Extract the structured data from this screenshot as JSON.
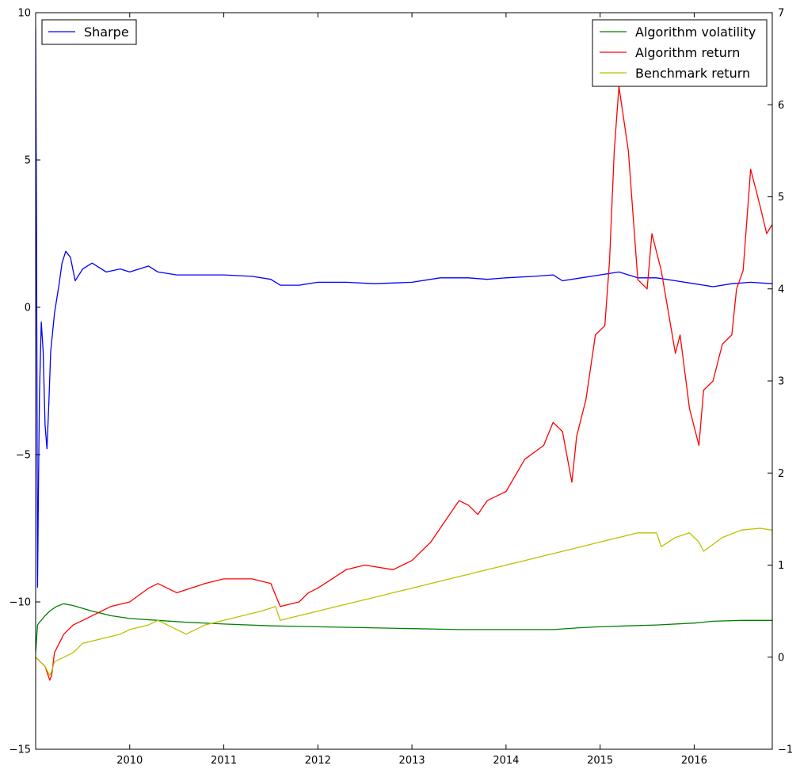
{
  "chart_data": {
    "type": "line",
    "x_range": [
      2009.0,
      2016.83
    ],
    "x_ticks": [
      "2010",
      "2011",
      "2012",
      "2013",
      "2014",
      "2015",
      "2016"
    ],
    "y_left": {
      "range": [
        -15,
        10
      ],
      "ticks": [
        "10",
        "5",
        "0",
        "−5",
        "−10",
        "−15"
      ]
    },
    "y_right": {
      "range": [
        -1,
        7
      ],
      "ticks": [
        "7",
        "6",
        "5",
        "4",
        "3",
        "2",
        "1",
        "0",
        "−1"
      ]
    },
    "legend_left": {
      "placement": "top-left",
      "entries": [
        "Sharpe"
      ]
    },
    "legend_right": {
      "placement": "top-right",
      "entries": [
        "Algorithm volatility",
        "Algorithm return",
        "Benchmark return"
      ]
    },
    "series": [
      {
        "name": "Sharpe",
        "axis": "left",
        "color": "#0000ff",
        "x": [
          2009.0,
          2009.01,
          2009.02,
          2009.03,
          2009.04,
          2009.06,
          2009.08,
          2009.1,
          2009.12,
          2009.14,
          2009.16,
          2009.2,
          2009.25,
          2009.28,
          2009.32,
          2009.37,
          2009.42,
          2009.5,
          2009.6,
          2009.75,
          2009.9,
          2010.0,
          2010.2,
          2010.3,
          2010.5,
          2010.8,
          2011.0,
          2011.3,
          2011.5,
          2011.6,
          2011.8,
          2012.0,
          2012.3,
          2012.6,
          2013.0,
          2013.3,
          2013.6,
          2013.8,
          2014.0,
          2014.3,
          2014.5,
          2014.6,
          2014.8,
          2015.0,
          2015.2,
          2015.4,
          2015.6,
          2015.8,
          2016.0,
          2016.2,
          2016.4,
          2016.6,
          2016.83
        ],
        "values": [
          9.5,
          2.0,
          -9.5,
          -6.0,
          -3.0,
          -0.5,
          -1.5,
          -4.0,
          -4.8,
          -3.3,
          -1.5,
          -0.2,
          0.8,
          1.5,
          1.9,
          1.7,
          0.9,
          1.3,
          1.5,
          1.2,
          1.3,
          1.2,
          1.4,
          1.2,
          1.1,
          1.1,
          1.1,
          1.05,
          0.95,
          0.75,
          0.75,
          0.85,
          0.85,
          0.8,
          0.85,
          1.0,
          1.0,
          0.95,
          1.0,
          1.05,
          1.1,
          0.9,
          1.0,
          1.1,
          1.2,
          1.0,
          1.0,
          0.9,
          0.8,
          0.7,
          0.8,
          0.85,
          0.8
        ]
      },
      {
        "name": "Algorithm volatility",
        "axis": "right",
        "color": "#008000",
        "x": [
          2009.0,
          2009.02,
          2009.04,
          2009.06,
          2009.1,
          2009.15,
          2009.22,
          2009.3,
          2009.4,
          2009.6,
          2009.8,
          2010.0,
          2010.3,
          2010.6,
          2011.0,
          2011.5,
          2012.0,
          2012.5,
          2013.0,
          2013.5,
          2014.0,
          2014.5,
          2014.8,
          2015.0,
          2015.3,
          2015.6,
          2016.0,
          2016.2,
          2016.5,
          2016.83
        ],
        "values": [
          0.05,
          0.35,
          0.38,
          0.4,
          0.45,
          0.5,
          0.55,
          0.58,
          0.56,
          0.5,
          0.45,
          0.42,
          0.4,
          0.38,
          0.36,
          0.34,
          0.33,
          0.32,
          0.31,
          0.3,
          0.3,
          0.3,
          0.32,
          0.33,
          0.34,
          0.35,
          0.37,
          0.39,
          0.4,
          0.4
        ]
      },
      {
        "name": "Algorithm return",
        "axis": "right",
        "color": "#ff0000",
        "x": [
          2009.0,
          2009.05,
          2009.1,
          2009.15,
          2009.17,
          2009.2,
          2009.25,
          2009.3,
          2009.4,
          2009.5,
          2009.6,
          2009.7,
          2009.8,
          2010.0,
          2010.2,
          2010.3,
          2010.5,
          2010.8,
          2011.0,
          2011.3,
          2011.5,
          2011.6,
          2011.8,
          2011.9,
          2012.0,
          2012.3,
          2012.5,
          2012.8,
          2013.0,
          2013.2,
          2013.4,
          2013.5,
          2013.6,
          2013.7,
          2013.8,
          2014.0,
          2014.2,
          2014.4,
          2014.5,
          2014.6,
          2014.7,
          2014.75,
          2014.85,
          2014.95,
          2015.05,
          2015.1,
          2015.15,
          2015.2,
          2015.3,
          2015.4,
          2015.5,
          2015.55,
          2015.65,
          2015.8,
          2015.85,
          2015.95,
          2016.05,
          2016.1,
          2016.2,
          2016.3,
          2016.4,
          2016.45,
          2016.52,
          2016.6,
          2016.7,
          2016.77,
          2016.83
        ],
        "values": [
          0.0,
          -0.05,
          -0.1,
          -0.25,
          -0.2,
          0.05,
          0.15,
          0.25,
          0.35,
          0.4,
          0.45,
          0.5,
          0.55,
          0.6,
          0.75,
          0.8,
          0.7,
          0.8,
          0.85,
          0.85,
          0.8,
          0.55,
          0.6,
          0.7,
          0.75,
          0.95,
          1.0,
          0.95,
          1.05,
          1.25,
          1.55,
          1.7,
          1.65,
          1.55,
          1.7,
          1.8,
          2.15,
          2.3,
          2.55,
          2.45,
          1.9,
          2.4,
          2.8,
          3.5,
          3.6,
          4.3,
          5.5,
          6.2,
          5.5,
          4.1,
          4.0,
          4.6,
          4.2,
          3.3,
          3.5,
          2.7,
          2.3,
          2.9,
          3.0,
          3.4,
          3.5,
          4.0,
          4.2,
          5.3,
          4.9,
          4.6,
          4.7
        ]
      },
      {
        "name": "Benchmark return",
        "axis": "right",
        "color": "#bfbf00",
        "x": [
          2009.0,
          2009.05,
          2009.1,
          2009.15,
          2009.17,
          2009.2,
          2009.3,
          2009.4,
          2009.5,
          2009.7,
          2009.9,
          2010.0,
          2010.2,
          2010.3,
          2010.4,
          2010.5,
          2010.6,
          2010.8,
          2011.0,
          2011.2,
          2011.4,
          2011.55,
          2011.6,
          2011.8,
          2012.0,
          2012.2,
          2012.4,
          2012.6,
          2012.8,
          2013.0,
          2013.2,
          2013.4,
          2013.6,
          2013.8,
          2014.0,
          2014.2,
          2014.4,
          2014.6,
          2014.8,
          2015.0,
          2015.2,
          2015.4,
          2015.6,
          2015.65,
          2015.8,
          2015.95,
          2016.05,
          2016.1,
          2016.3,
          2016.5,
          2016.7,
          2016.83
        ],
        "values": [
          0.0,
          -0.05,
          -0.1,
          -0.2,
          -0.15,
          -0.05,
          0.0,
          0.05,
          0.15,
          0.2,
          0.25,
          0.3,
          0.35,
          0.4,
          0.35,
          0.3,
          0.25,
          0.35,
          0.4,
          0.45,
          0.5,
          0.55,
          0.4,
          0.45,
          0.5,
          0.55,
          0.6,
          0.65,
          0.7,
          0.75,
          0.8,
          0.85,
          0.9,
          0.95,
          1.0,
          1.05,
          1.1,
          1.15,
          1.2,
          1.25,
          1.3,
          1.35,
          1.35,
          1.2,
          1.3,
          1.35,
          1.25,
          1.15,
          1.3,
          1.38,
          1.4,
          1.38
        ]
      }
    ]
  }
}
